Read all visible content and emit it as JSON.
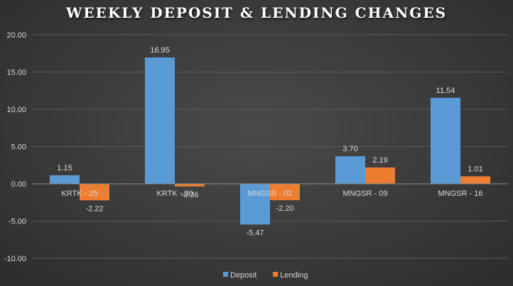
{
  "chart_data": {
    "type": "bar",
    "title": "WEEKLY DEPOSIT & LENDING CHANGES",
    "categories": [
      "KRTK - 25",
      "KRTK - 30",
      "MNGSR - 02",
      "MNGSR - 09",
      "MNGSR - 16"
    ],
    "series": [
      {
        "name": "Deposit",
        "values": [
          1.15,
          16.95,
          -5.47,
          3.7,
          11.54
        ],
        "labels": [
          "1.15",
          "16.95",
          "-5.47",
          "3.70",
          "11.54"
        ],
        "color": "#5b9bd5"
      },
      {
        "name": "Lending",
        "values": [
          -2.22,
          -0.36,
          -2.2,
          2.19,
          1.01
        ],
        "labels": [
          "-2.22",
          "-0.36",
          "-2.20",
          "2.19",
          "1.01"
        ],
        "color": "#ed7d31"
      }
    ],
    "ylim": [
      -10,
      20
    ],
    "yticks": [
      "20.00",
      "15.00",
      "10.00",
      "5.00",
      "0.00",
      "-5.00",
      "-10.00"
    ],
    "ytick_values": [
      20,
      15,
      10,
      5,
      0,
      -5,
      -10
    ],
    "grid": true,
    "legend": "bottom-center"
  }
}
